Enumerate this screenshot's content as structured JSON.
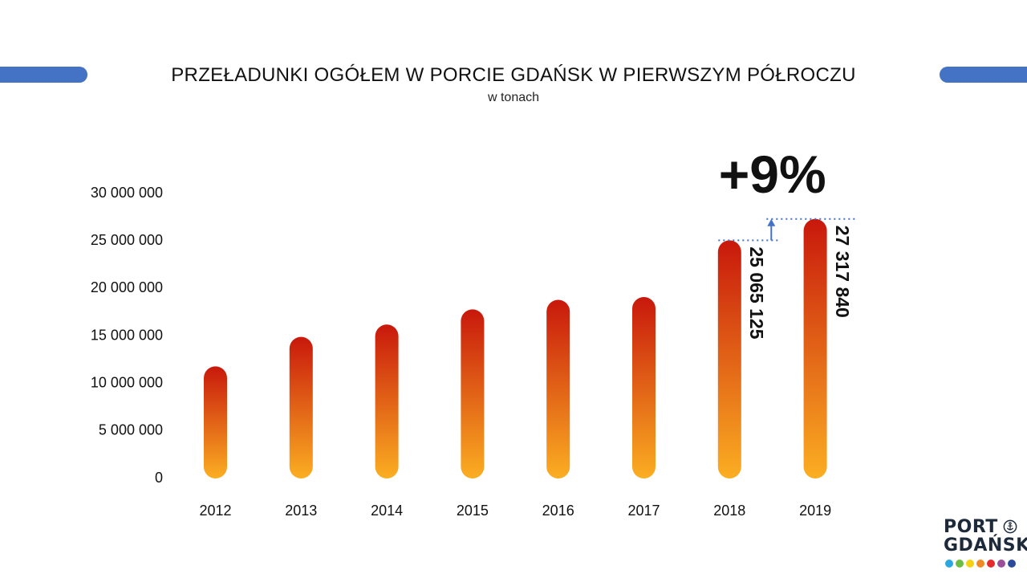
{
  "title": "PRZEŁADUNKI OGÓŁEM W PORCIE GDAŃSK W PIERWSZYM PÓŁROCZU",
  "subtitle": "w tonach",
  "logo": {
    "line1": "PORT",
    "line2": "GDAŃSK"
  },
  "colors": {
    "accent_bar": "#4472c4",
    "bar_top": "#c8180c",
    "bar_bottom": "#fbae22",
    "annotation_line": "#4472c4",
    "logo_dots": [
      "#2aa7e0",
      "#6dbd45",
      "#f5d314",
      "#f08a24",
      "#e52b2b",
      "#9b4f9b",
      "#2b4a9a"
    ]
  },
  "chart_data": {
    "type": "bar",
    "title": "PRZEŁADUNKI OGÓŁEM W PORCIE GDAŃSK W PIERWSZYM PÓŁROCZU",
    "subtitle": "w tonach",
    "categories": [
      "2012",
      "2013",
      "2014",
      "2015",
      "2016",
      "2017",
      "2018",
      "2019"
    ],
    "values": [
      11800000,
      14900000,
      16200000,
      17800000,
      18800000,
      19100000,
      25065125,
      27317840
    ],
    "ylim": [
      0,
      30000000
    ],
    "y_ticks": [
      0,
      5000000,
      10000000,
      15000000,
      20000000,
      25000000,
      30000000
    ],
    "y_tick_labels": [
      "0",
      "5 000 000",
      "10 000 000",
      "15 000 000",
      "20 000 000",
      "25 000 000",
      "30 000 000"
    ],
    "data_labels": [
      {
        "category": "2018",
        "text": "25 065 125"
      },
      {
        "category": "2019",
        "text": "27 317 840"
      }
    ],
    "annotation": {
      "text": "+9%",
      "from": "2018",
      "to": "2019"
    },
    "grid": false,
    "legend": "none"
  }
}
